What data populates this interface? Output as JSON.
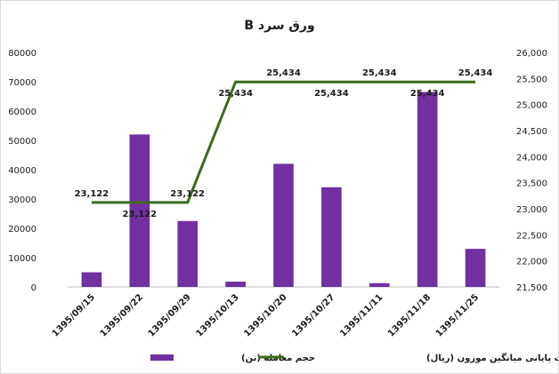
{
  "chart_data": {
    "type": "bar",
    "title": "ورق سرد B",
    "categories": [
      "1395/09/15",
      "1395/09/22",
      "1395/09/29",
      "1395/10/13",
      "1395/10/20",
      "1395/10/27",
      "1395/11/11",
      "1395/11/18",
      "1395/11/25"
    ],
    "series": [
      {
        "name": "حجم معامله (تن)",
        "type": "bar",
        "axis": "left",
        "color": "#7030a0",
        "values": [
          5000,
          52000,
          22500,
          1800,
          42000,
          34000,
          1300,
          66500,
          13000
        ]
      },
      {
        "name": "قیمت پایانی میانگین موزون (ریال)",
        "type": "line",
        "axis": "right",
        "color": "#3b6a1f",
        "values": [
          23122,
          23122,
          23122,
          25434,
          25434,
          25434,
          25434,
          25434,
          25434
        ],
        "labels": [
          "23,122",
          "23,122",
          "23,122",
          "25,434",
          "25,434",
          "25,434",
          "25,434",
          "25,434",
          "25,434"
        ]
      }
    ],
    "y_left": {
      "min": 0,
      "max": 80000,
      "ticks": [
        0,
        10000,
        20000,
        30000,
        40000,
        50000,
        60000,
        70000,
        80000
      ],
      "tick_labels": [
        "0",
        "10000",
        "20000",
        "30000",
        "40000",
        "50000",
        "60000",
        "70000",
        "80000"
      ]
    },
    "y_right": {
      "min": 21500,
      "max": 26000,
      "ticks": [
        21500,
        22000,
        22500,
        23000,
        23500,
        24000,
        24500,
        25000,
        25500,
        26000
      ],
      "tick_labels": [
        "21,500",
        "22,000",
        "22,500",
        "23,000",
        "23,500",
        "24,000",
        "24,500",
        "25,000",
        "25,500",
        "26,000"
      ]
    },
    "grid": false,
    "legend_position": "bottom"
  }
}
